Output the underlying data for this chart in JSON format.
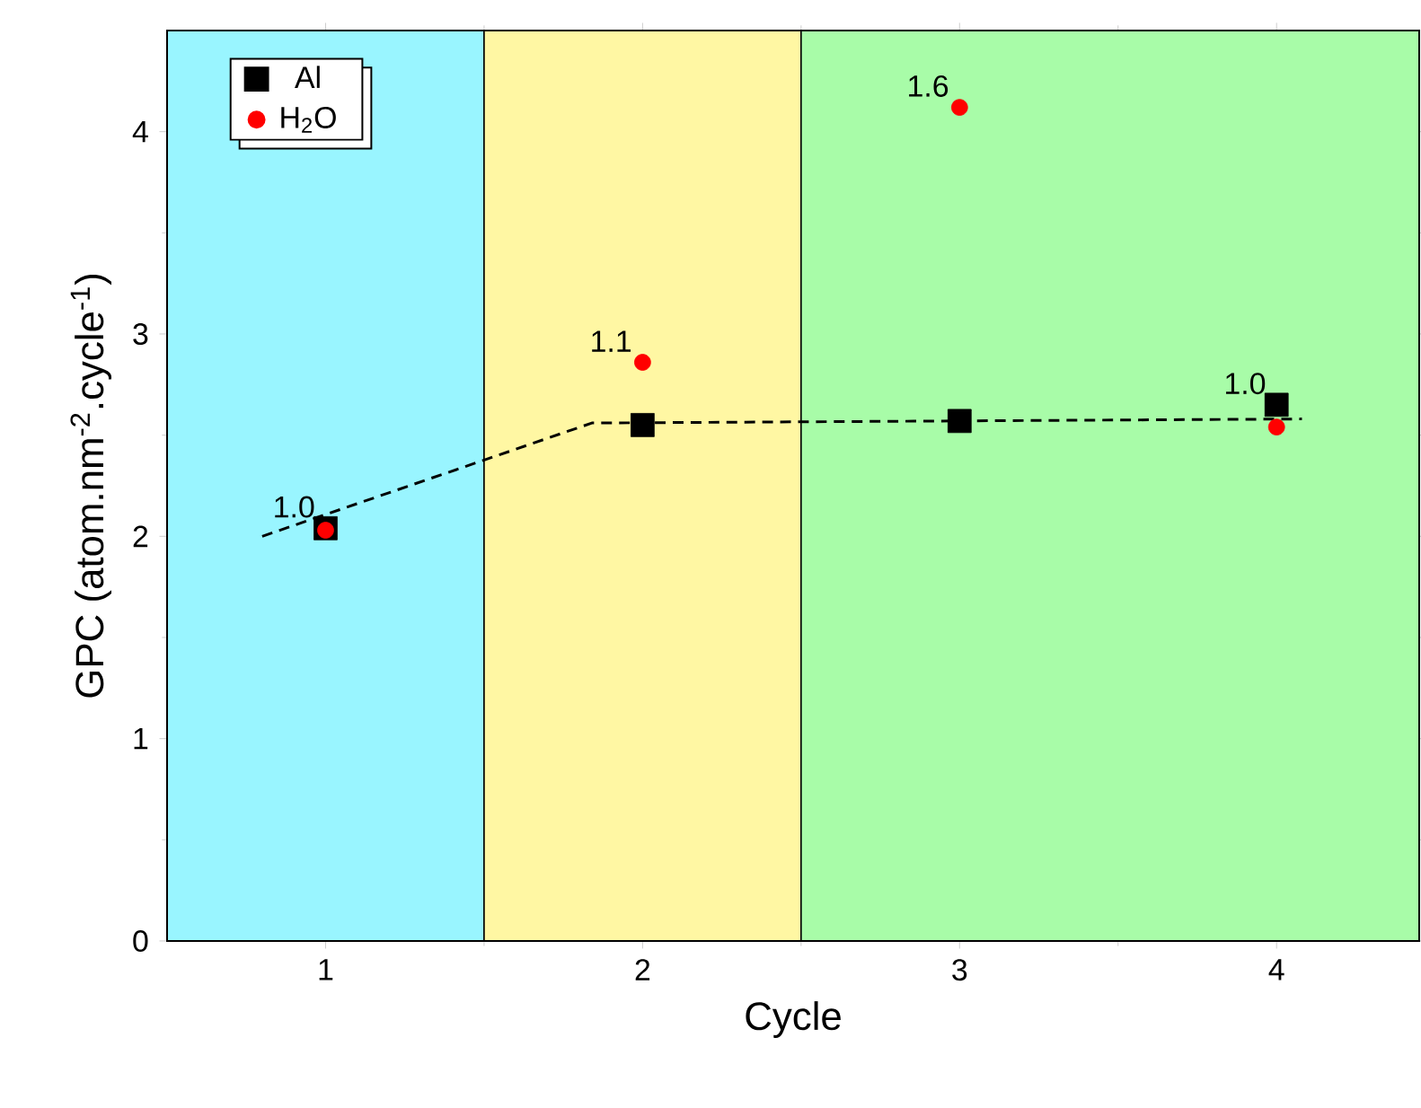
{
  "chart_data": {
    "type": "scatter",
    "xlabel": "Cycle",
    "ylabel": "GPC (atom.nm$^{-2}$.cycle$^{-1}$)",
    "x": [
      1,
      2,
      3,
      4
    ],
    "series": [
      {
        "name": "Al",
        "color": "#000000",
        "marker": "square",
        "values": [
          2.04,
          2.55,
          2.57,
          2.65
        ]
      },
      {
        "name": "H$_{2}$O",
        "color": "#ff0000",
        "marker": "circle",
        "values": [
          2.03,
          2.86,
          4.12,
          2.54
        ]
      },
      {
        "type": "line",
        "color": "#000000",
        "line_style": "dashed",
        "marker": "none",
        "x": [
          0.8,
          1.84,
          4.08
        ],
        "values": [
          2.0,
          2.56,
          2.58
        ]
      }
    ],
    "xlim": [
      0.5,
      4.45
    ],
    "ylim": [
      0,
      4.5
    ],
    "xticks": [
      1,
      2,
      3,
      4
    ],
    "yticks": [
      0,
      1,
      2,
      3,
      4
    ],
    "bands": [
      {
        "axis": "x",
        "from": 0.5,
        "to": 1.5,
        "color": "#99f5ff"
      },
      {
        "axis": "x",
        "from": 1.5,
        "to": 2.5,
        "color": "#fff7a3"
      },
      {
        "axis": "x",
        "from": 2.5,
        "to": 4.45,
        "color": "#a8fca8"
      }
    ],
    "annotations": [
      "1.0",
      "1.1",
      "1.6",
      "1.0"
    ],
    "grid": false,
    "legend": "top left"
  }
}
